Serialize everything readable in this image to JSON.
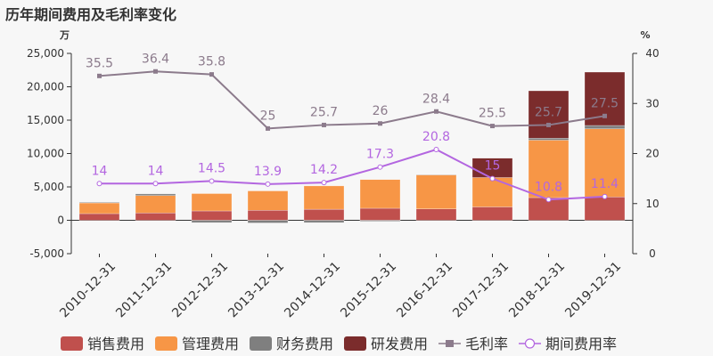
{
  "chart_data": {
    "type": "bar",
    "title": "历年期间费用及毛利率变化",
    "y_left_unit": "万",
    "y_right_unit": "%",
    "categories": [
      "2010-12-31",
      "2011-12-31",
      "2012-12-31",
      "2013-12-31",
      "2014-12-31",
      "2015-12-31",
      "2016-12-31",
      "2017-12-31",
      "2018-12-31",
      "2019-12-31"
    ],
    "y_left_ticks": [
      "-5,000",
      "0",
      "5,000",
      "10,000",
      "15,000",
      "20,000",
      "25,000"
    ],
    "y_left_range": [
      -5000,
      25000
    ],
    "y_right_ticks": [
      "0",
      "10",
      "20",
      "30",
      "40"
    ],
    "y_right_range": [
      0,
      40
    ],
    "series": [
      {
        "name": "销售费用",
        "kind": "bar",
        "axis": "left",
        "color": "#c0504d",
        "values": [
          1000,
          1100,
          1400,
          1500,
          1650,
          1800,
          1700,
          2000,
          3400,
          3500
        ]
      },
      {
        "name": "管理费用",
        "kind": "bar",
        "axis": "left",
        "color": "#f79646",
        "values": [
          1600,
          2600,
          2600,
          2900,
          3500,
          4300,
          5100,
          4400,
          8600,
          10200
        ]
      },
      {
        "name": "财务费用",
        "kind": "bar",
        "axis": "left",
        "color": "#7f7f7f",
        "values": [
          100,
          250,
          -350,
          -400,
          -350,
          -150,
          50,
          0,
          300,
          500
        ]
      },
      {
        "name": "研发费用",
        "kind": "bar",
        "axis": "left",
        "color": "#7b2c2c",
        "values": [
          0,
          0,
          0,
          0,
          0,
          0,
          0,
          2900,
          7100,
          8000
        ]
      },
      {
        "name": "毛利率",
        "kind": "line",
        "axis": "right",
        "color": "#8c7b8c",
        "values": [
          35.5,
          36.4,
          35.8,
          25,
          25.7,
          26,
          28.4,
          25.5,
          25.7,
          27.5
        ],
        "labels": [
          "35.5",
          "36.4",
          "35.8",
          "25",
          "25.7",
          "26",
          "28.4",
          "25.5",
          "25.7",
          "27.5"
        ]
      },
      {
        "name": "期间费用率",
        "kind": "line",
        "axis": "right",
        "color": "#b366e0",
        "values": [
          14,
          14,
          14.5,
          13.9,
          14.2,
          17.3,
          20.8,
          15,
          10.8,
          11.4
        ],
        "labels": [
          "14",
          "14",
          "14.5",
          "13.9",
          "14.2",
          "17.3",
          "20.8",
          "15",
          "10.8",
          "11.4"
        ]
      }
    ],
    "legend_position": "bottom",
    "grid": false
  }
}
